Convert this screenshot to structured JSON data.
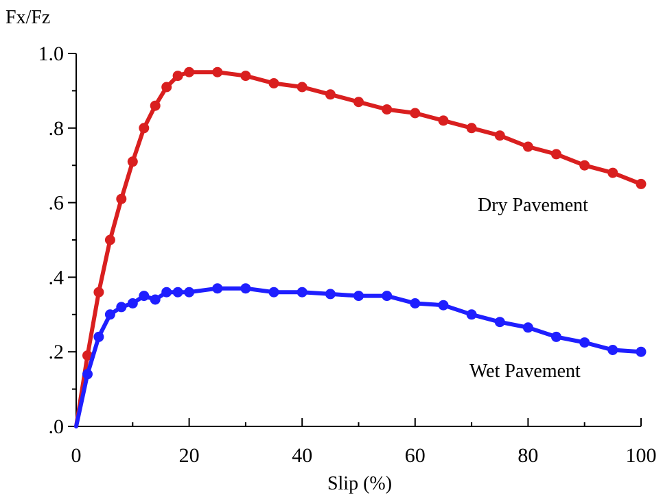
{
  "chart_data": {
    "type": "line",
    "title": "",
    "xlabel": "Slip (%)",
    "ylabel": "Fx/Fz",
    "xlim": [
      0,
      100
    ],
    "ylim": [
      0,
      1.0
    ],
    "grid": false,
    "legend": "inline",
    "x_ticks": [
      0,
      20,
      40,
      60,
      80,
      100
    ],
    "x_tick_labels": [
      "0",
      "20",
      "40",
      "60",
      "80",
      "100"
    ],
    "y_ticks": [
      0,
      0.2,
      0.4,
      0.6,
      0.8,
      1.0
    ],
    "y_tick_labels": [
      ".0",
      ".2",
      ".4",
      ".6",
      ".8",
      "1.0"
    ],
    "series": [
      {
        "name": "Dry Pavement",
        "color": "#d91f1f",
        "x": [
          0,
          2,
          4,
          6,
          8,
          10,
          12,
          14,
          16,
          18,
          20,
          25,
          30,
          35,
          40,
          45,
          50,
          55,
          60,
          65,
          70,
          75,
          80,
          85,
          90,
          95,
          100
        ],
        "y": [
          0,
          0.19,
          0.36,
          0.5,
          0.61,
          0.71,
          0.8,
          0.86,
          0.91,
          0.94,
          0.95,
          0.95,
          0.94,
          0.92,
          0.91,
          0.89,
          0.87,
          0.85,
          0.84,
          0.82,
          0.8,
          0.78,
          0.75,
          0.73,
          0.7,
          0.68,
          0.65
        ]
      },
      {
        "name": "Wet Pavement",
        "color": "#1f1fff",
        "x": [
          0,
          2,
          4,
          6,
          8,
          10,
          12,
          14,
          16,
          18,
          20,
          25,
          30,
          35,
          40,
          45,
          50,
          55,
          60,
          65,
          70,
          75,
          80,
          85,
          90,
          95,
          100
        ],
        "y": [
          0,
          0.14,
          0.24,
          0.3,
          0.32,
          0.33,
          0.35,
          0.34,
          0.36,
          0.36,
          0.36,
          0.37,
          0.37,
          0.36,
          0.36,
          0.355,
          0.35,
          0.35,
          0.33,
          0.325,
          0.3,
          0.28,
          0.265,
          0.24,
          0.225,
          0.205,
          0.2
        ]
      }
    ]
  }
}
